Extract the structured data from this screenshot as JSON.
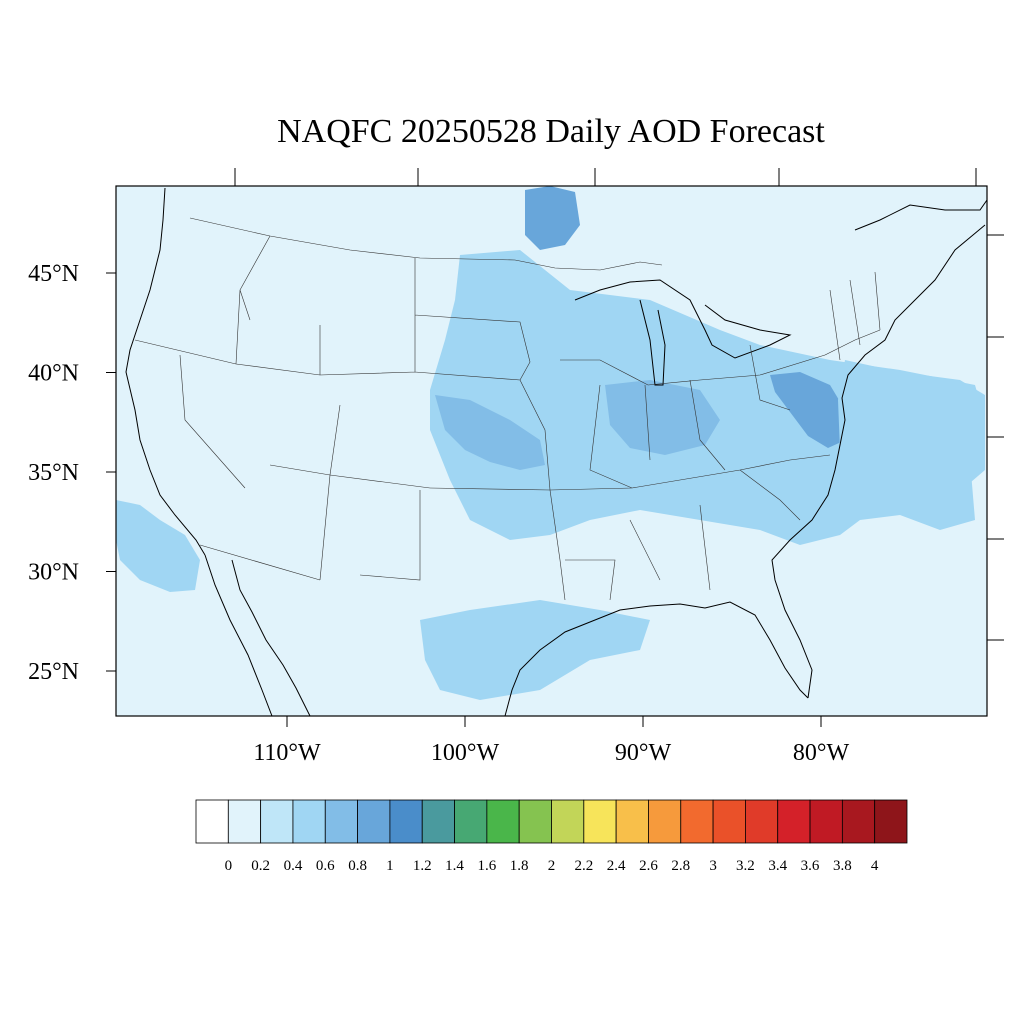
{
  "title": "NAQFC 20250528 Daily AOD Forecast",
  "map": {
    "background_color": "#e1f3fb",
    "lat_ticks": [
      "45°N",
      "40°N",
      "35°N",
      "30°N",
      "25°N"
    ],
    "lat_values": [
      45,
      40,
      35,
      30,
      25
    ],
    "lon_ticks": [
      "110°W",
      "100°W",
      "90°W",
      "80°W"
    ],
    "lon_values": [
      -110,
      -100,
      -90,
      -80
    ]
  },
  "aod_plumes": [
    {
      "name": "great-plains-midwest-plume",
      "level": 0.4
    },
    {
      "name": "kansas-nebraska-core",
      "level": 0.6
    },
    {
      "name": "ohio-valley-core",
      "level": 0.6
    },
    {
      "name": "mid-atlantic-core",
      "level": 0.8
    },
    {
      "name": "atlantic-offshore-plume",
      "level": 0.4
    },
    {
      "name": "gulf-of-mexico-plume",
      "level": 0.4
    },
    {
      "name": "pacific-coast-plume",
      "level": 0.4
    },
    {
      "name": "ontario-lake-superior-spot",
      "level": 0.8
    }
  ],
  "colorbar": {
    "labels": [
      "0",
      "0.2",
      "0.4",
      "0.6",
      "0.8",
      "1",
      "1.2",
      "1.4",
      "1.6",
      "1.8",
      "2",
      "2.2",
      "2.4",
      "2.6",
      "2.8",
      "3",
      "3.2",
      "3.4",
      "3.6",
      "3.8",
      "4"
    ],
    "colors": [
      "#ffffff",
      "#e1f3fb",
      "#bfe6f8",
      "#a0d6f3",
      "#82bde7",
      "#68a6da",
      "#4a8dca",
      "#4a9a9e",
      "#47a873",
      "#4ab64a",
      "#85c350",
      "#c2d558",
      "#f7e45a",
      "#f8bf4a",
      "#f69a3c",
      "#f26a2e",
      "#ea5129",
      "#e03b29",
      "#d42129",
      "#c01a24",
      "#a8181f",
      "#8e151a"
    ]
  }
}
